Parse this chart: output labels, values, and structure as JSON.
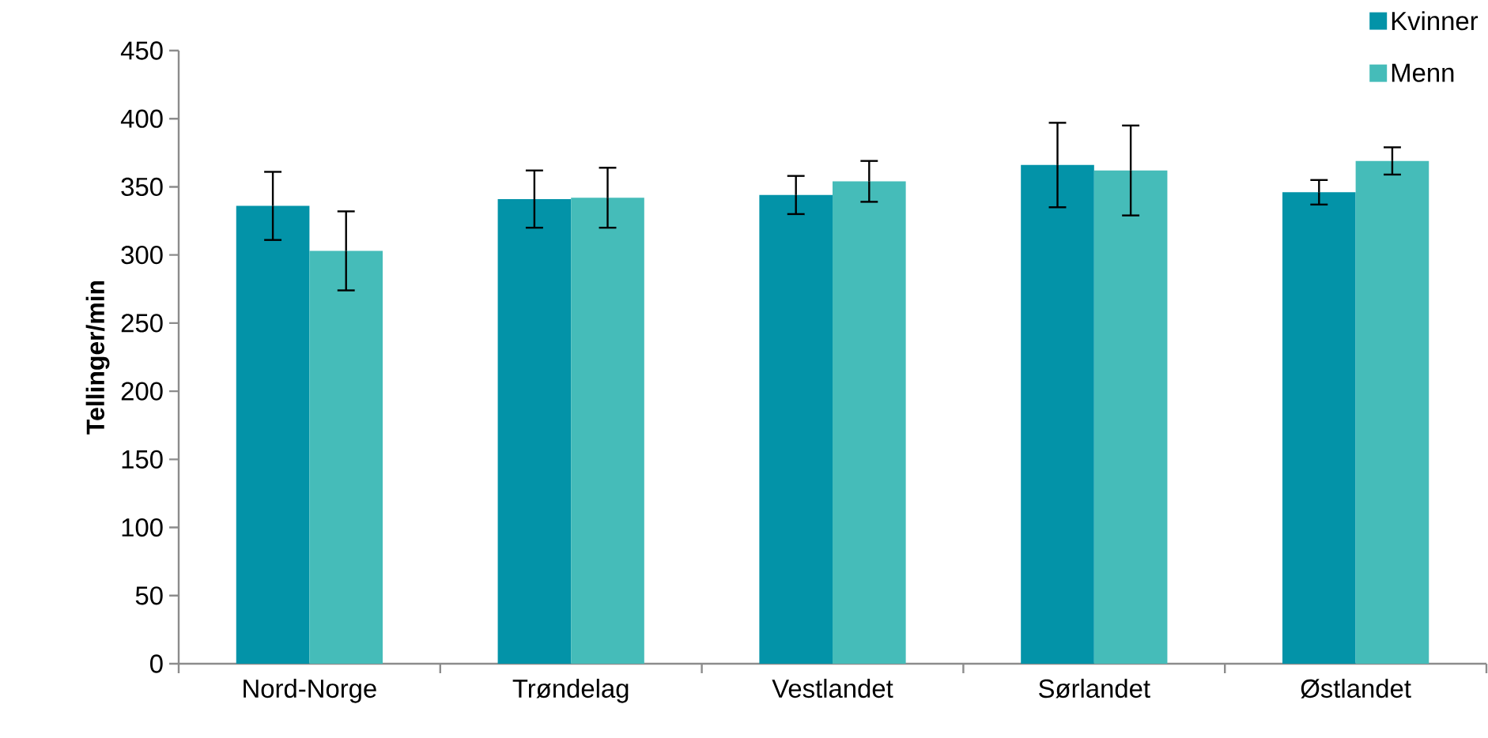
{
  "chart_data": {
    "type": "bar",
    "ylabel": "Tellinger/min",
    "categories": [
      "Nord-Norge",
      "Trøndelag",
      "Vestlandet",
      "Sørlandet",
      "Østlandet"
    ],
    "series": [
      {
        "name": "Kvinner",
        "color": "#0393a8",
        "values": [
          336,
          341,
          344,
          366,
          346
        ],
        "errors": [
          25,
          21,
          14,
          31,
          9
        ]
      },
      {
        "name": "Menn",
        "color": "#45bcb9",
        "values": [
          303,
          342,
          354,
          362,
          369
        ],
        "errors": [
          29,
          22,
          15,
          33,
          10
        ]
      }
    ],
    "ylim": [
      0,
      450
    ],
    "yticks": [
      0,
      50,
      100,
      150,
      200,
      250,
      300,
      350,
      400,
      450
    ],
    "legend": "top right",
    "grid": false
  }
}
